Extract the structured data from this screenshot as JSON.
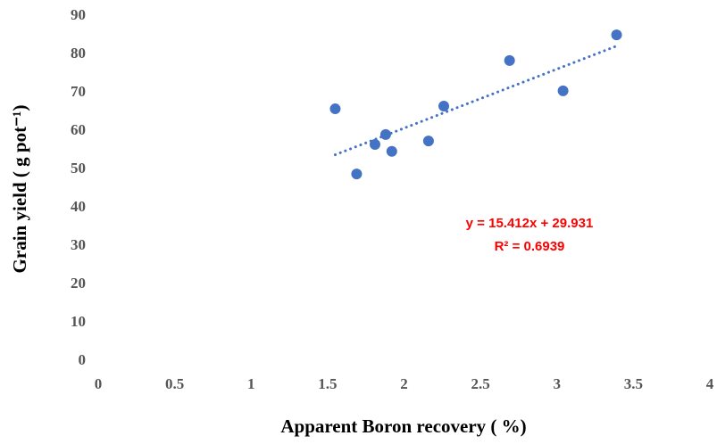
{
  "chart_data": {
    "type": "scatter",
    "x_label": "Apparent Boron recovery ( %)",
    "y_label": "Grain yield ( g pot⁻¹)",
    "series": [
      {
        "name": "Grain yield",
        "color": "#4472c4",
        "x": [
          1.55,
          1.69,
          1.81,
          1.88,
          1.92,
          2.16,
          2.26,
          2.69,
          3.04,
          3.39
        ],
        "values": [
          65.8,
          48.8,
          56.5,
          59.1,
          54.7,
          57.4,
          66.5,
          78.4,
          70.5,
          85.1
        ]
      }
    ],
    "trendline": {
      "equation": "y = 15.412x + 29.931",
      "r_squared": "R² = 0.6939",
      "slope": 15.412,
      "intercept": 29.931,
      "color": "#4472c4"
    },
    "xlim": [
      0,
      4
    ],
    "xticks": [
      0,
      0.5,
      1,
      1.5,
      2,
      2.5,
      3,
      3.5,
      4
    ],
    "ylim": [
      0,
      90
    ],
    "yticks": [
      0,
      10,
      20,
      30,
      40,
      50,
      60,
      70,
      80,
      90
    ]
  }
}
